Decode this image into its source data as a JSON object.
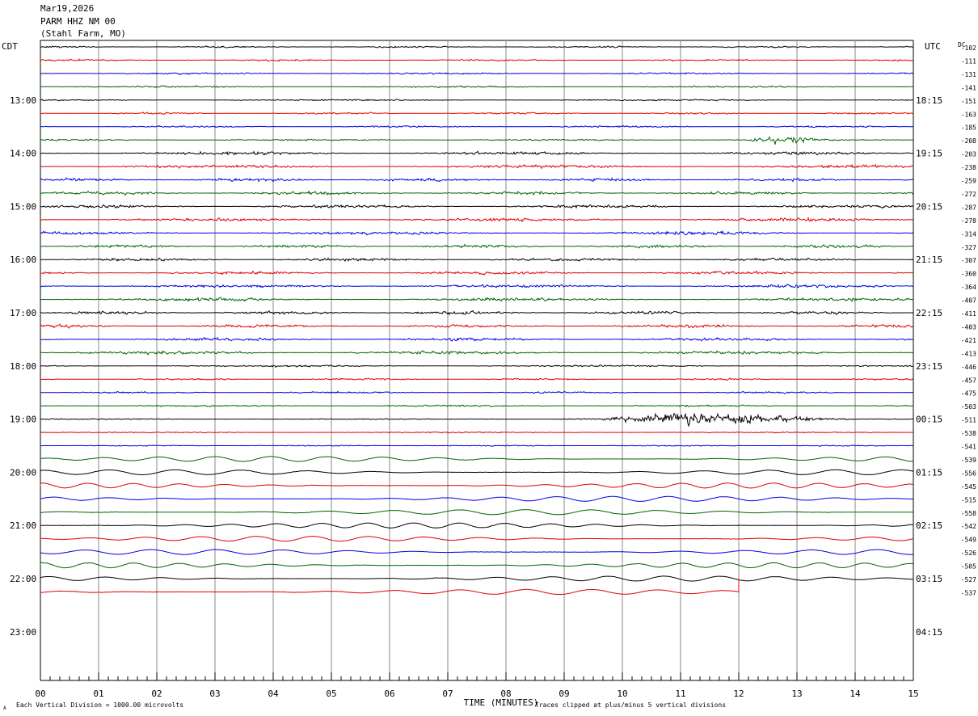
{
  "header": {
    "date": "Mar19,2026",
    "station": "PARM HHZ NM 00",
    "location": "(Stahl Farm, MO)"
  },
  "chart_data": {
    "type": "line",
    "left_label": "CDT",
    "right_label": "UTC",
    "dc_label": "DC",
    "xlabel": "TIME (MINUTES)",
    "x_ticks": [
      "00",
      "01",
      "02",
      "03",
      "04",
      "05",
      "06",
      "07",
      "08",
      "09",
      "10",
      "11",
      "12",
      "13",
      "14",
      "15"
    ],
    "xlim": [
      0,
      15
    ],
    "left_hour_labels": [
      "13:00",
      "14:00",
      "15:00",
      "16:00",
      "17:00",
      "18:00",
      "19:00",
      "20:00",
      "21:00",
      "22:00",
      "23:00"
    ],
    "right_hour_labels": [
      "18:15",
      "19:15",
      "20:15",
      "21:15",
      "22:15",
      "23:15",
      "00:15",
      "01:15",
      "02:15",
      "03:15",
      "04:15"
    ],
    "dc_offsets": [
      "-102",
      "-111",
      "-131",
      "-141",
      "-151",
      "-163",
      "-185",
      "-208",
      "-203",
      "-238",
      "-259",
      "-272",
      "-287",
      "-278",
      "-314",
      "-327",
      "-307",
      "-360",
      "-364",
      "-407",
      "-411",
      "-403",
      "-421",
      "-413",
      "-446",
      "-457",
      "-475",
      "-503",
      "-511",
      "-538",
      "-541",
      "-539",
      "-556",
      "-545",
      "-515",
      "-558",
      "-542",
      "-549",
      "-526",
      "-505",
      "-527",
      "-537"
    ],
    "trace_colors": [
      "#000000",
      "#e00000",
      "#0000e0",
      "#006600"
    ],
    "trace_count": 42,
    "last_trace_end_minute": 12.0,
    "notes_left": "Each Vertical Division = 1000.00 microvolts",
    "notes_right": "Traces clipped at plus/minus 5 vertical divisions",
    "corner_mark": "A",
    "grid": true
  }
}
